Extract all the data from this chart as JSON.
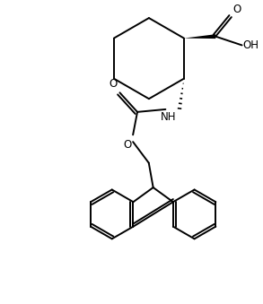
{
  "figure_width": 2.93,
  "figure_height": 3.39,
  "dpi": 100,
  "background_color": "#ffffff",
  "line_color": "#000000",
  "lw": 1.4,
  "fs": 8.5,
  "xlim": [
    0,
    293
  ],
  "ylim": [
    0,
    339
  ]
}
